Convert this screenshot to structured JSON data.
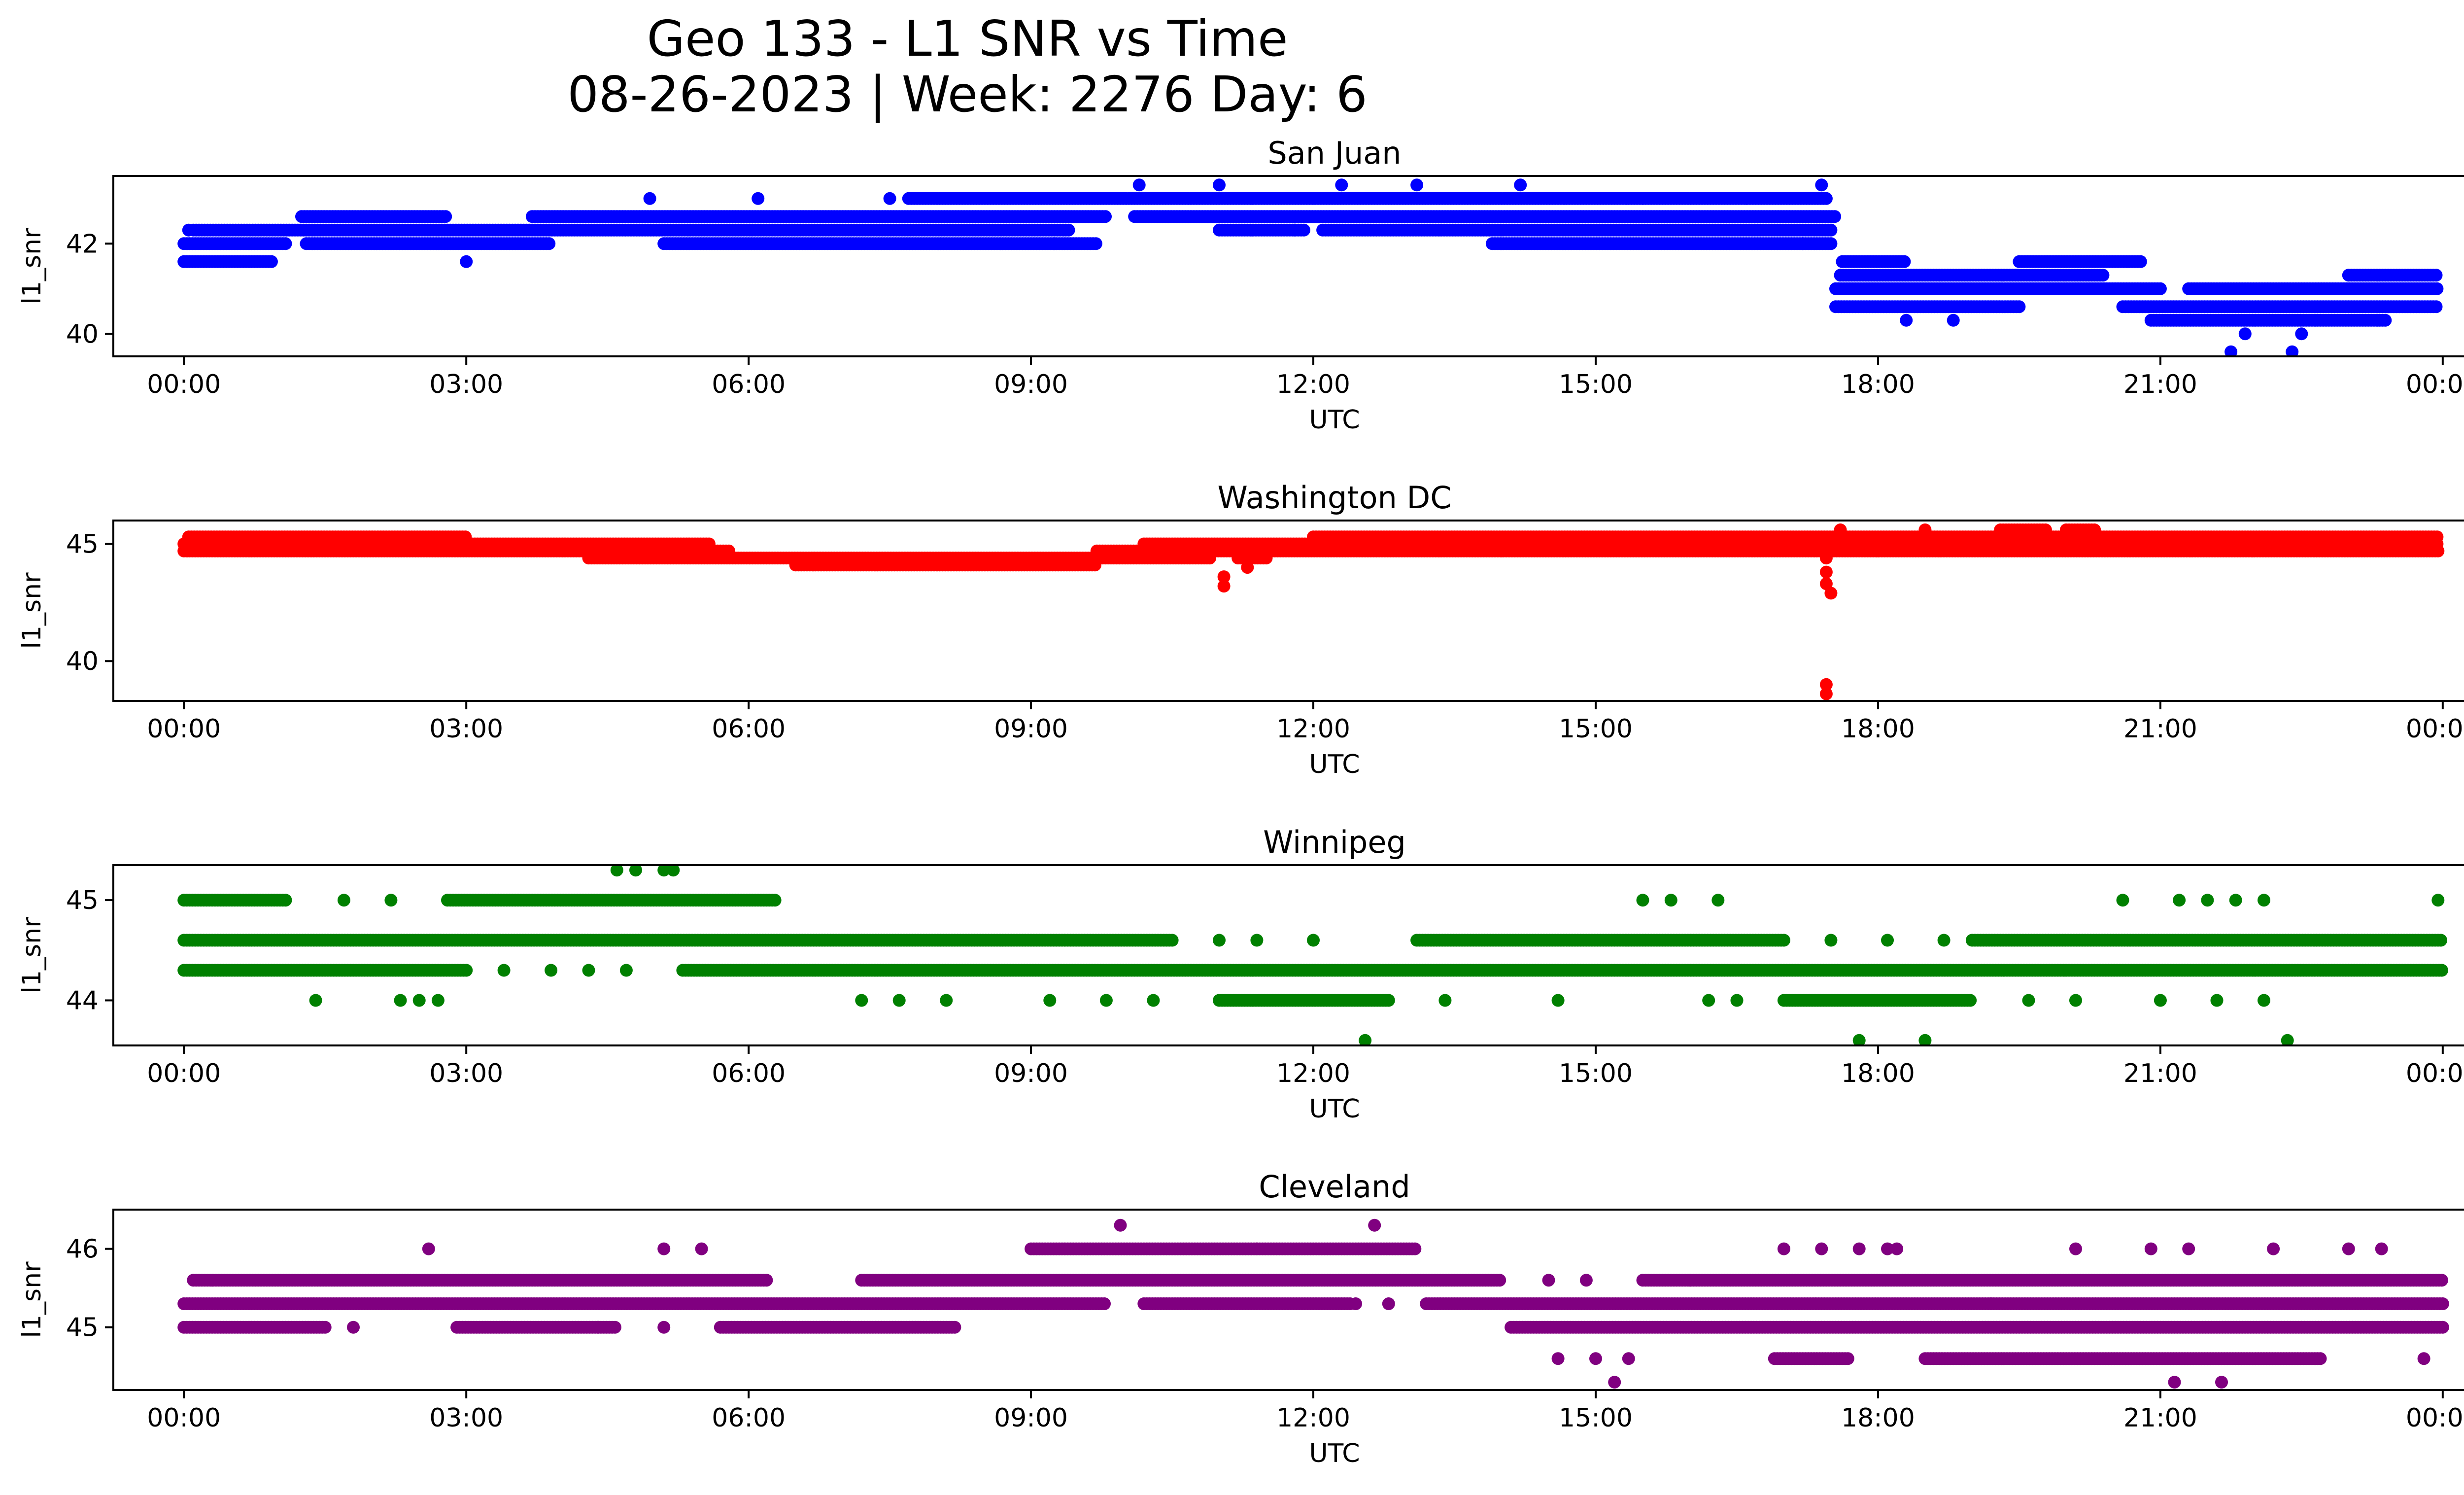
{
  "figure": {
    "title_line1": "Geo 133 - L1 SNR vs Time",
    "title_line2": "08-26-2023 | Week: 2276 Day: 6"
  },
  "chart_data": [
    {
      "type": "scatter",
      "title": "San Juan",
      "xlabel": "UTC",
      "ylabel": "l1_snr",
      "color": "#0000ff",
      "x_range_hours": [
        -0.75,
        25.2
      ],
      "x_ticks": [
        "00:00",
        "03:00",
        "06:00",
        "09:00",
        "12:00",
        "15:00",
        "18:00",
        "21:00",
        "00:00"
      ],
      "ylim": [
        39.5,
        43.5
      ],
      "y_ticks": [
        40,
        42
      ],
      "bands": [
        {
          "y": 41.6,
          "x": [
            [
              0.0,
              0.95
            ]
          ]
        },
        {
          "y": 42.0,
          "x": [
            [
              0.0,
              1.1
            ],
            [
              1.3,
              3.9
            ],
            [
              5.1,
              9.7
            ],
            [
              13.9,
              17.5
            ]
          ]
        },
        {
          "y": 42.3,
          "x": [
            [
              0.1,
              9.4
            ],
            [
              11.0,
              11.9
            ],
            [
              12.1,
              17.5
            ]
          ]
        },
        {
          "y": 42.6,
          "x": [
            [
              1.25,
              2.8
            ],
            [
              3.7,
              9.8
            ],
            [
              10.1,
              17.55
            ]
          ]
        },
        {
          "y": 43.0,
          "x": [
            [
              7.7,
              17.45
            ]
          ]
        },
        {
          "y": 41.0,
          "x": [
            [
              17.55,
              21.0
            ],
            [
              21.3,
              23.95
            ]
          ]
        },
        {
          "y": 41.3,
          "x": [
            [
              17.6,
              20.4
            ],
            [
              23.0,
              23.95
            ]
          ]
        },
        {
          "y": 40.6,
          "x": [
            [
              17.55,
              19.5
            ],
            [
              20.6,
              23.95
            ]
          ]
        },
        {
          "y": 41.6,
          "x": [
            [
              17.65,
              18.3
            ],
            [
              19.5,
              20.8
            ]
          ]
        },
        {
          "y": 40.3,
          "x": [
            [
              20.9,
              23.4
            ]
          ]
        }
      ],
      "points": [
        [
          0.05,
          42.3
        ],
        [
          3.0,
          41.6
        ],
        [
          4.95,
          43.0
        ],
        [
          6.1,
          43.0
        ],
        [
          7.5,
          43.0
        ],
        [
          9.25,
          42.0
        ],
        [
          10.15,
          43.3
        ],
        [
          11.0,
          43.3
        ],
        [
          11.8,
          42.3
        ],
        [
          12.3,
          43.3
        ],
        [
          13.1,
          43.3
        ],
        [
          14.2,
          43.3
        ],
        [
          15.5,
          43.0
        ],
        [
          16.6,
          43.0
        ],
        [
          17.4,
          43.3
        ],
        [
          17.2,
          42.0
        ],
        [
          18.3,
          40.3
        ],
        [
          18.8,
          40.3
        ],
        [
          21.75,
          39.6
        ],
        [
          22.4,
          39.6
        ],
        [
          22.5,
          40.0
        ],
        [
          21.9,
          40.0
        ],
        [
          17.62,
          41.6
        ]
      ],
      "time_extent_hours": [
        0,
        24
      ]
    },
    {
      "type": "scatter",
      "title": "Washington DC",
      "xlabel": "UTC",
      "ylabel": "l1_snr",
      "color": "#ff0000",
      "x_range_hours": [
        -0.75,
        25.2
      ],
      "x_ticks": [
        "00:00",
        "03:00",
        "06:00",
        "09:00",
        "12:00",
        "15:00",
        "18:00",
        "21:00",
        "00:00"
      ],
      "ylim": [
        38.3,
        46.0
      ],
      "y_ticks": [
        40,
        45
      ],
      "bands": [
        {
          "y": 44.7,
          "x": [
            [
              0.0,
              5.8
            ],
            [
              9.7,
              23.95
            ]
          ]
        },
        {
          "y": 45.0,
          "x": [
            [
              0.0,
              5.6
            ],
            [
              10.2,
              23.95
            ]
          ]
        },
        {
          "y": 45.3,
          "x": [
            [
              0.05,
              3.0
            ],
            [
              12.0,
              23.95
            ]
          ]
        },
        {
          "y": 44.4,
          "x": [
            [
              4.3,
              10.9
            ],
            [
              11.2,
              11.5
            ]
          ]
        },
        {
          "y": 44.1,
          "x": [
            [
              6.5,
              9.7
            ]
          ]
        },
        {
          "y": 45.6,
          "x": [
            [
              19.3,
              19.8
            ],
            [
              20.0,
              20.3
            ]
          ]
        }
      ],
      "points": [
        [
          11.05,
          43.6
        ],
        [
          11.05,
          43.2
        ],
        [
          11.3,
          44.0
        ],
        [
          17.45,
          44.4
        ],
        [
          17.45,
          43.8
        ],
        [
          17.45,
          43.3
        ],
        [
          17.5,
          42.9
        ],
        [
          17.45,
          39.0
        ],
        [
          17.45,
          38.6
        ],
        [
          17.6,
          45.6
        ],
        [
          18.5,
          45.6
        ]
      ],
      "time_extent_hours": [
        0,
        24
      ]
    },
    {
      "type": "scatter",
      "title": "Winnipeg",
      "xlabel": "UTC",
      "ylabel": "l1_snr",
      "color": "#008000",
      "x_range_hours": [
        -0.75,
        25.2
      ],
      "x_ticks": [
        "00:00",
        "03:00",
        "06:00",
        "09:00",
        "12:00",
        "15:00",
        "18:00",
        "21:00",
        "00:00"
      ],
      "ylim": [
        43.55,
        45.35
      ],
      "y_ticks": [
        44,
        45
      ],
      "bands": [
        {
          "y": 44.6,
          "x": [
            [
              0.0,
              10.5
            ],
            [
              13.1,
              17.0
            ],
            [
              19.0,
              24.0
            ]
          ]
        },
        {
          "y": 44.3,
          "x": [
            [
              0.0,
              3.0
            ],
            [
              5.3,
              24.0
            ]
          ]
        },
        {
          "y": 45.0,
          "x": [
            [
              0.0,
              1.1
            ],
            [
              2.8,
              6.3
            ]
          ]
        },
        {
          "y": 44.0,
          "x": [
            [
              11.0,
              12.8
            ],
            [
              17.0,
              19.0
            ]
          ]
        }
      ],
      "points": [
        [
          1.4,
          44.0
        ],
        [
          2.3,
          44.0
        ],
        [
          2.5,
          44.0
        ],
        [
          2.7,
          44.0
        ],
        [
          1.7,
          45.0
        ],
        [
          2.2,
          45.0
        ],
        [
          4.6,
          45.3
        ],
        [
          4.8,
          45.3
        ],
        [
          5.1,
          45.3
        ],
        [
          5.2,
          45.3
        ],
        [
          3.4,
          44.3
        ],
        [
          3.9,
          44.3
        ],
        [
          4.3,
          44.3
        ],
        [
          4.7,
          44.3
        ],
        [
          7.2,
          44.0
        ],
        [
          7.6,
          44.0
        ],
        [
          8.1,
          44.0
        ],
        [
          9.2,
          44.0
        ],
        [
          9.8,
          44.0
        ],
        [
          10.3,
          44.0
        ],
        [
          11.0,
          44.6
        ],
        [
          11.4,
          44.6
        ],
        [
          12.0,
          44.6
        ],
        [
          12.55,
          43.6
        ],
        [
          13.4,
          44.0
        ],
        [
          14.6,
          44.0
        ],
        [
          15.5,
          45.0
        ],
        [
          15.8,
          45.0
        ],
        [
          16.3,
          45.0
        ],
        [
          16.2,
          44.0
        ],
        [
          16.5,
          44.0
        ],
        [
          17.5,
          44.6
        ],
        [
          17.8,
          43.6
        ],
        [
          18.1,
          44.6
        ],
        [
          18.5,
          43.6
        ],
        [
          18.7,
          44.6
        ],
        [
          19.6,
          44.0
        ],
        [
          20.1,
          44.0
        ],
        [
          20.6,
          45.0
        ],
        [
          21.0,
          44.0
        ],
        [
          21.2,
          45.0
        ],
        [
          21.5,
          45.0
        ],
        [
          21.8,
          45.0
        ],
        [
          22.1,
          45.0
        ],
        [
          21.6,
          44.0
        ],
        [
          22.1,
          44.0
        ],
        [
          22.35,
          43.6
        ],
        [
          23.95,
          45.0
        ]
      ],
      "time_extent_hours": [
        0,
        24
      ]
    },
    {
      "type": "scatter",
      "title": "Cleveland",
      "xlabel": "UTC",
      "ylabel": "l1_snr",
      "color": "#800080",
      "x_range_hours": [
        -0.75,
        25.2
      ],
      "x_ticks": [
        "00:00",
        "03:00",
        "06:00",
        "09:00",
        "12:00",
        "15:00",
        "18:00",
        "21:00",
        "00:00"
      ],
      "ylim": [
        44.2,
        46.5
      ],
      "y_ticks": [
        45,
        46
      ],
      "bands": [
        {
          "y": 45.3,
          "x": [
            [
              0.0,
              9.8
            ],
            [
              10.2,
              12.4
            ],
            [
              13.2,
              24.0
            ]
          ]
        },
        {
          "y": 45.6,
          "x": [
            [
              0.1,
              6.2
            ],
            [
              7.2,
              14.0
            ],
            [
              15.5,
              24.0
            ]
          ]
        },
        {
          "y": 45.0,
          "x": [
            [
              0.0,
              1.5
            ],
            [
              2.9,
              4.6
            ],
            [
              5.7,
              8.2
            ],
            [
              14.1,
              24.0
            ]
          ]
        },
        {
          "y": 46.0,
          "x": [
            [
              9.0,
              13.1
            ]
          ]
        },
        {
          "y": 44.6,
          "x": [
            [
              16.9,
              17.7
            ],
            [
              18.5,
              22.7
            ]
          ]
        }
      ],
      "points": [
        [
          0.3,
          45.6
        ],
        [
          1.8,
          45.0
        ],
        [
          2.6,
          46.0
        ],
        [
          5.1,
          46.0
        ],
        [
          5.5,
          46.0
        ],
        [
          4.4,
          45.0
        ],
        [
          5.1,
          45.0
        ],
        [
          9.95,
          46.3
        ],
        [
          12.65,
          46.3
        ],
        [
          11.4,
          46.0
        ],
        [
          12.45,
          45.3
        ],
        [
          12.8,
          45.3
        ],
        [
          14.6,
          44.6
        ],
        [
          15.0,
          44.6
        ],
        [
          15.2,
          44.3
        ],
        [
          15.35,
          44.6
        ],
        [
          14.5,
          45.6
        ],
        [
          14.9,
          45.6
        ],
        [
          17.0,
          46.0
        ],
        [
          17.4,
          46.0
        ],
        [
          17.8,
          46.0
        ],
        [
          18.1,
          46.0
        ],
        [
          18.2,
          46.0
        ],
        [
          20.1,
          46.0
        ],
        [
          20.9,
          46.0
        ],
        [
          21.3,
          46.0
        ],
        [
          22.2,
          46.0
        ],
        [
          23.0,
          46.0
        ],
        [
          23.35,
          46.0
        ],
        [
          21.15,
          44.3
        ],
        [
          21.65,
          44.3
        ],
        [
          23.8,
          44.6
        ],
        [
          16.0,
          45.6
        ],
        [
          19.2,
          45.3
        ]
      ],
      "time_extent_hours": [
        0,
        24
      ]
    }
  ]
}
